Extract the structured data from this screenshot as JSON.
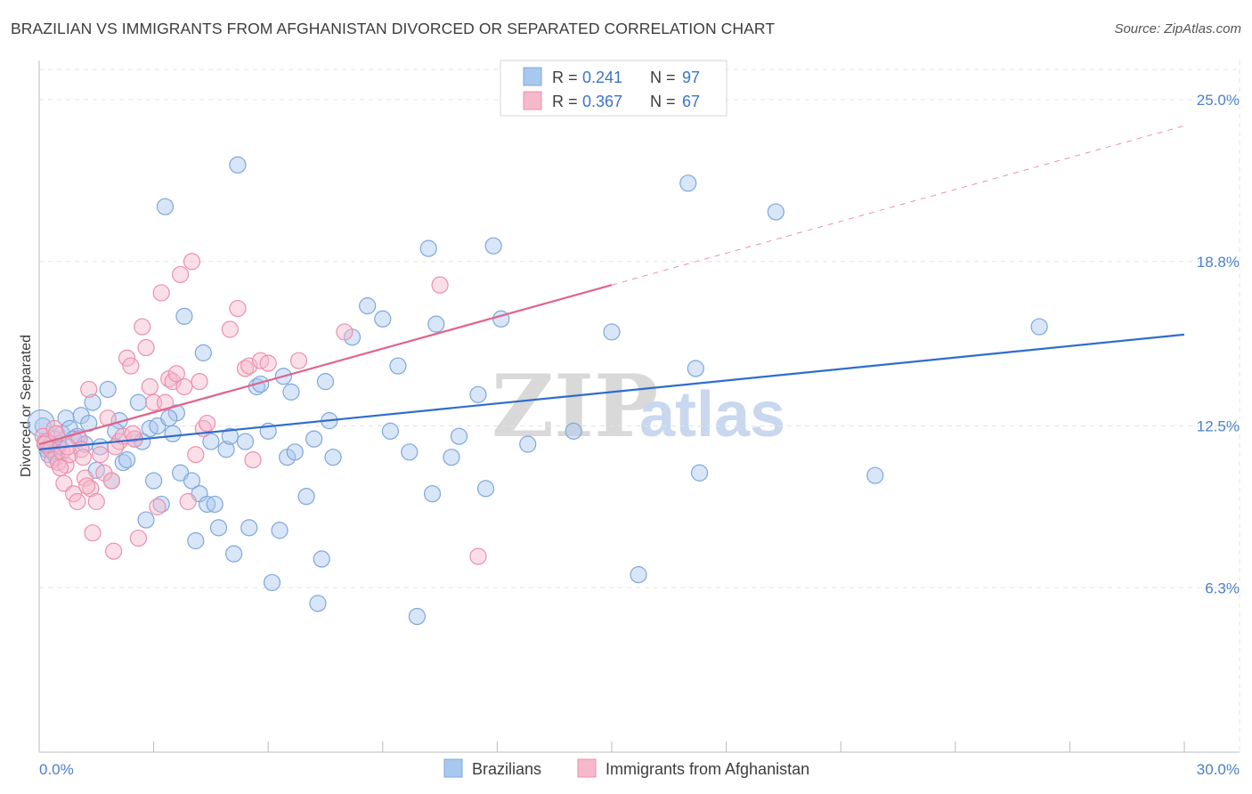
{
  "header": {
    "title": "BRAZILIAN VS IMMIGRANTS FROM AFGHANISTAN DIVORCED OR SEPARATED CORRELATION CHART",
    "source": "Source: ZipAtlas.com"
  },
  "legend_box": {
    "rows": [
      {
        "r_label": "R =",
        "r_value": "0.241",
        "n_label": "N =",
        "n_value": "97"
      },
      {
        "r_label": "R =",
        "r_value": "0.367",
        "n_label": "N =",
        "n_value": "67"
      }
    ]
  },
  "watermark": {
    "part1": "ZIP",
    "part2": "atlas"
  },
  "colors": {
    "blue_fill": "#a9c8f0",
    "blue_stroke": "#7ea7dc",
    "blue_line": "#2f6dcc",
    "pink_fill": "#f6b9cc",
    "pink_stroke": "#ec8fac",
    "pink_line": "#e0648c",
    "axis_text": "#4a7fd0",
    "grid": "#e3e3e3"
  },
  "chart_data": {
    "type": "scatter",
    "title": "BRAZILIAN VS IMMIGRANTS FROM AFGHANISTAN DIVORCED OR SEPARATED CORRELATION CHART",
    "xlabel": "",
    "ylabel": "Divorced or Separated",
    "xlim": [
      0,
      30
    ],
    "ylim": [
      0,
      26.5
    ],
    "x_tick_labels": [
      "0.0%",
      "30.0%"
    ],
    "y_ticks": [
      6.3,
      12.5,
      18.8,
      25.0
    ],
    "y_tick_labels": [
      "6.3%",
      "12.5%",
      "18.8%",
      "25.0%"
    ],
    "grid": true,
    "legend_position": "top-center",
    "series": [
      {
        "name": "Brazilians",
        "color": "#a9c8f0",
        "trend": {
          "x0": 0.0,
          "y0": 11.6,
          "x1": 30.0,
          "y1": 16.0
        },
        "points": [
          [
            0.1,
            12.5
          ],
          [
            0.15,
            11.9
          ],
          [
            0.2,
            11.6
          ],
          [
            0.3,
            11.8
          ],
          [
            0.35,
            11.5
          ],
          [
            0.4,
            12.0
          ],
          [
            0.5,
            11.7
          ],
          [
            0.6,
            12.2
          ],
          [
            0.7,
            12.8
          ],
          [
            0.8,
            12.4
          ],
          [
            1.0,
            12.1
          ],
          [
            1.1,
            12.9
          ],
          [
            1.2,
            11.8
          ],
          [
            1.3,
            12.6
          ],
          [
            1.4,
            13.4
          ],
          [
            1.5,
            10.8
          ],
          [
            1.8,
            13.9
          ],
          [
            1.9,
            10.4
          ],
          [
            2.1,
            12.7
          ],
          [
            2.2,
            11.1
          ],
          [
            2.3,
            11.2
          ],
          [
            2.5,
            12.0
          ],
          [
            2.6,
            13.4
          ],
          [
            2.8,
            8.9
          ],
          [
            2.9,
            12.4
          ],
          [
            3.0,
            10.4
          ],
          [
            3.1,
            12.5
          ],
          [
            3.2,
            9.5
          ],
          [
            3.3,
            20.9
          ],
          [
            3.5,
            12.2
          ],
          [
            3.6,
            13.0
          ],
          [
            3.7,
            10.7
          ],
          [
            3.8,
            16.7
          ],
          [
            4.0,
            10.4
          ],
          [
            4.1,
            8.1
          ],
          [
            4.2,
            9.9
          ],
          [
            4.3,
            15.3
          ],
          [
            4.4,
            9.5
          ],
          [
            4.5,
            11.9
          ],
          [
            4.6,
            9.5
          ],
          [
            4.7,
            8.6
          ],
          [
            4.9,
            11.6
          ],
          [
            5.0,
            12.1
          ],
          [
            5.1,
            7.6
          ],
          [
            5.2,
            22.5
          ],
          [
            5.4,
            11.9
          ],
          [
            5.5,
            8.6
          ],
          [
            5.7,
            14.0
          ],
          [
            5.8,
            14.1
          ],
          [
            6.0,
            12.3
          ],
          [
            6.1,
            6.5
          ],
          [
            6.3,
            8.5
          ],
          [
            6.4,
            14.4
          ],
          [
            6.5,
            11.3
          ],
          [
            6.6,
            13.8
          ],
          [
            6.7,
            11.5
          ],
          [
            7.0,
            9.8
          ],
          [
            7.2,
            12.0
          ],
          [
            7.3,
            5.7
          ],
          [
            7.4,
            7.4
          ],
          [
            7.5,
            14.2
          ],
          [
            7.6,
            12.7
          ],
          [
            7.7,
            11.3
          ],
          [
            8.2,
            15.9
          ],
          [
            8.6,
            17.1
          ],
          [
            9.0,
            16.6
          ],
          [
            9.2,
            12.3
          ],
          [
            9.4,
            14.8
          ],
          [
            9.7,
            11.5
          ],
          [
            9.9,
            5.2
          ],
          [
            10.2,
            19.3
          ],
          [
            10.3,
            9.9
          ],
          [
            10.4,
            16.4
          ],
          [
            10.8,
            11.3
          ],
          [
            11.0,
            12.1
          ],
          [
            11.5,
            13.7
          ],
          [
            11.7,
            10.1
          ],
          [
            11.9,
            19.4
          ],
          [
            12.1,
            16.6
          ],
          [
            12.8,
            11.8
          ],
          [
            14.0,
            12.3
          ],
          [
            15.0,
            16.1
          ],
          [
            15.7,
            6.8
          ],
          [
            17.0,
            21.8
          ],
          [
            17.2,
            14.7
          ],
          [
            17.3,
            10.7
          ],
          [
            19.3,
            20.7
          ],
          [
            21.9,
            10.6
          ],
          [
            26.2,
            16.3
          ],
          [
            0.05,
            12.6
          ],
          [
            0.25,
            11.4
          ],
          [
            0.45,
            11.3
          ],
          [
            0.9,
            12.0
          ],
          [
            1.6,
            11.7
          ],
          [
            2.0,
            12.3
          ],
          [
            2.7,
            11.9
          ],
          [
            3.4,
            12.8
          ]
        ]
      },
      {
        "name": "Immigrants from Afghanistan",
        "color": "#f6b9cc",
        "trend": {
          "x0": 0.0,
          "y0": 11.8,
          "x1": 15.0,
          "y1": 17.9,
          "dash_x1": 30.0,
          "dash_y1": 24.0
        },
        "points": [
          [
            0.1,
            12.1
          ],
          [
            0.2,
            11.9
          ],
          [
            0.3,
            11.6
          ],
          [
            0.35,
            11.2
          ],
          [
            0.4,
            12.4
          ],
          [
            0.5,
            11.1
          ],
          [
            0.6,
            11.5
          ],
          [
            0.65,
            10.3
          ],
          [
            0.7,
            11.0
          ],
          [
            0.8,
            11.4
          ],
          [
            0.9,
            9.9
          ],
          [
            1.0,
            9.6
          ],
          [
            1.05,
            12.0
          ],
          [
            1.1,
            11.6
          ],
          [
            1.2,
            10.5
          ],
          [
            1.3,
            13.9
          ],
          [
            1.35,
            10.1
          ],
          [
            1.4,
            8.4
          ],
          [
            1.5,
            9.6
          ],
          [
            1.6,
            11.4
          ],
          [
            1.7,
            10.7
          ],
          [
            1.8,
            12.8
          ],
          [
            1.9,
            10.4
          ],
          [
            1.95,
            7.7
          ],
          [
            2.1,
            11.9
          ],
          [
            2.2,
            12.1
          ],
          [
            2.3,
            15.1
          ],
          [
            2.4,
            14.8
          ],
          [
            2.5,
            12.0
          ],
          [
            2.6,
            8.2
          ],
          [
            2.7,
            16.3
          ],
          [
            2.8,
            15.5
          ],
          [
            2.9,
            14.0
          ],
          [
            3.0,
            13.4
          ],
          [
            3.1,
            9.4
          ],
          [
            3.2,
            17.6
          ],
          [
            3.3,
            13.4
          ],
          [
            3.4,
            14.3
          ],
          [
            3.5,
            14.2
          ],
          [
            3.6,
            14.5
          ],
          [
            3.7,
            18.3
          ],
          [
            3.8,
            14.0
          ],
          [
            3.9,
            9.6
          ],
          [
            4.0,
            18.8
          ],
          [
            4.1,
            11.4
          ],
          [
            4.2,
            14.2
          ],
          [
            4.3,
            12.4
          ],
          [
            4.4,
            12.6
          ],
          [
            5.0,
            16.2
          ],
          [
            5.2,
            17.0
          ],
          [
            5.4,
            14.7
          ],
          [
            5.5,
            14.8
          ],
          [
            5.6,
            11.2
          ],
          [
            5.8,
            15.0
          ],
          [
            6.0,
            14.9
          ],
          [
            6.8,
            15.0
          ],
          [
            8.0,
            16.1
          ],
          [
            10.5,
            17.9
          ],
          [
            11.5,
            7.5
          ],
          [
            0.15,
            11.8
          ],
          [
            0.45,
            12.2
          ],
          [
            0.55,
            10.9
          ],
          [
            0.75,
            11.7
          ],
          [
            1.15,
            11.3
          ],
          [
            1.25,
            10.2
          ],
          [
            2.0,
            11.7
          ],
          [
            2.45,
            12.2
          ]
        ]
      }
    ]
  }
}
